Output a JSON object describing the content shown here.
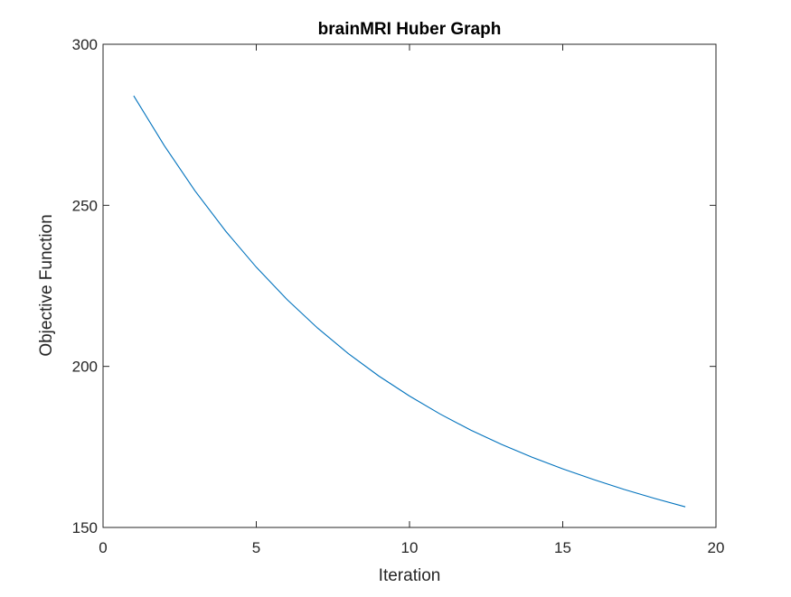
{
  "chart_data": {
    "type": "line",
    "title": "brainMRI Huber Graph",
    "xlabel": "Iteration",
    "ylabel": "Objective Function",
    "xlim": [
      0,
      20
    ],
    "ylim": [
      150,
      300
    ],
    "xticks": [
      0,
      5,
      10,
      15,
      20
    ],
    "yticks": [
      150,
      200,
      250,
      300
    ],
    "xtick_labels": [
      "0",
      "5",
      "10",
      "15",
      "20"
    ],
    "ytick_labels": [
      "150",
      "200",
      "250",
      "300"
    ],
    "grid": false,
    "legend": "none",
    "line_color": "#0072BD",
    "series": [
      {
        "x": [
          1,
          2,
          3,
          4,
          5,
          6,
          7,
          8,
          9,
          10,
          11,
          12,
          13,
          14,
          15,
          16,
          17,
          18,
          19
        ],
        "values": [
          284,
          268.5,
          254.5,
          242.0,
          230.8,
          220.8,
          211.9,
          204.0,
          197.0,
          190.8,
          185.2,
          180.2,
          175.8,
          171.8,
          168.2,
          164.9,
          161.8,
          159.0,
          156.4
        ]
      }
    ]
  }
}
